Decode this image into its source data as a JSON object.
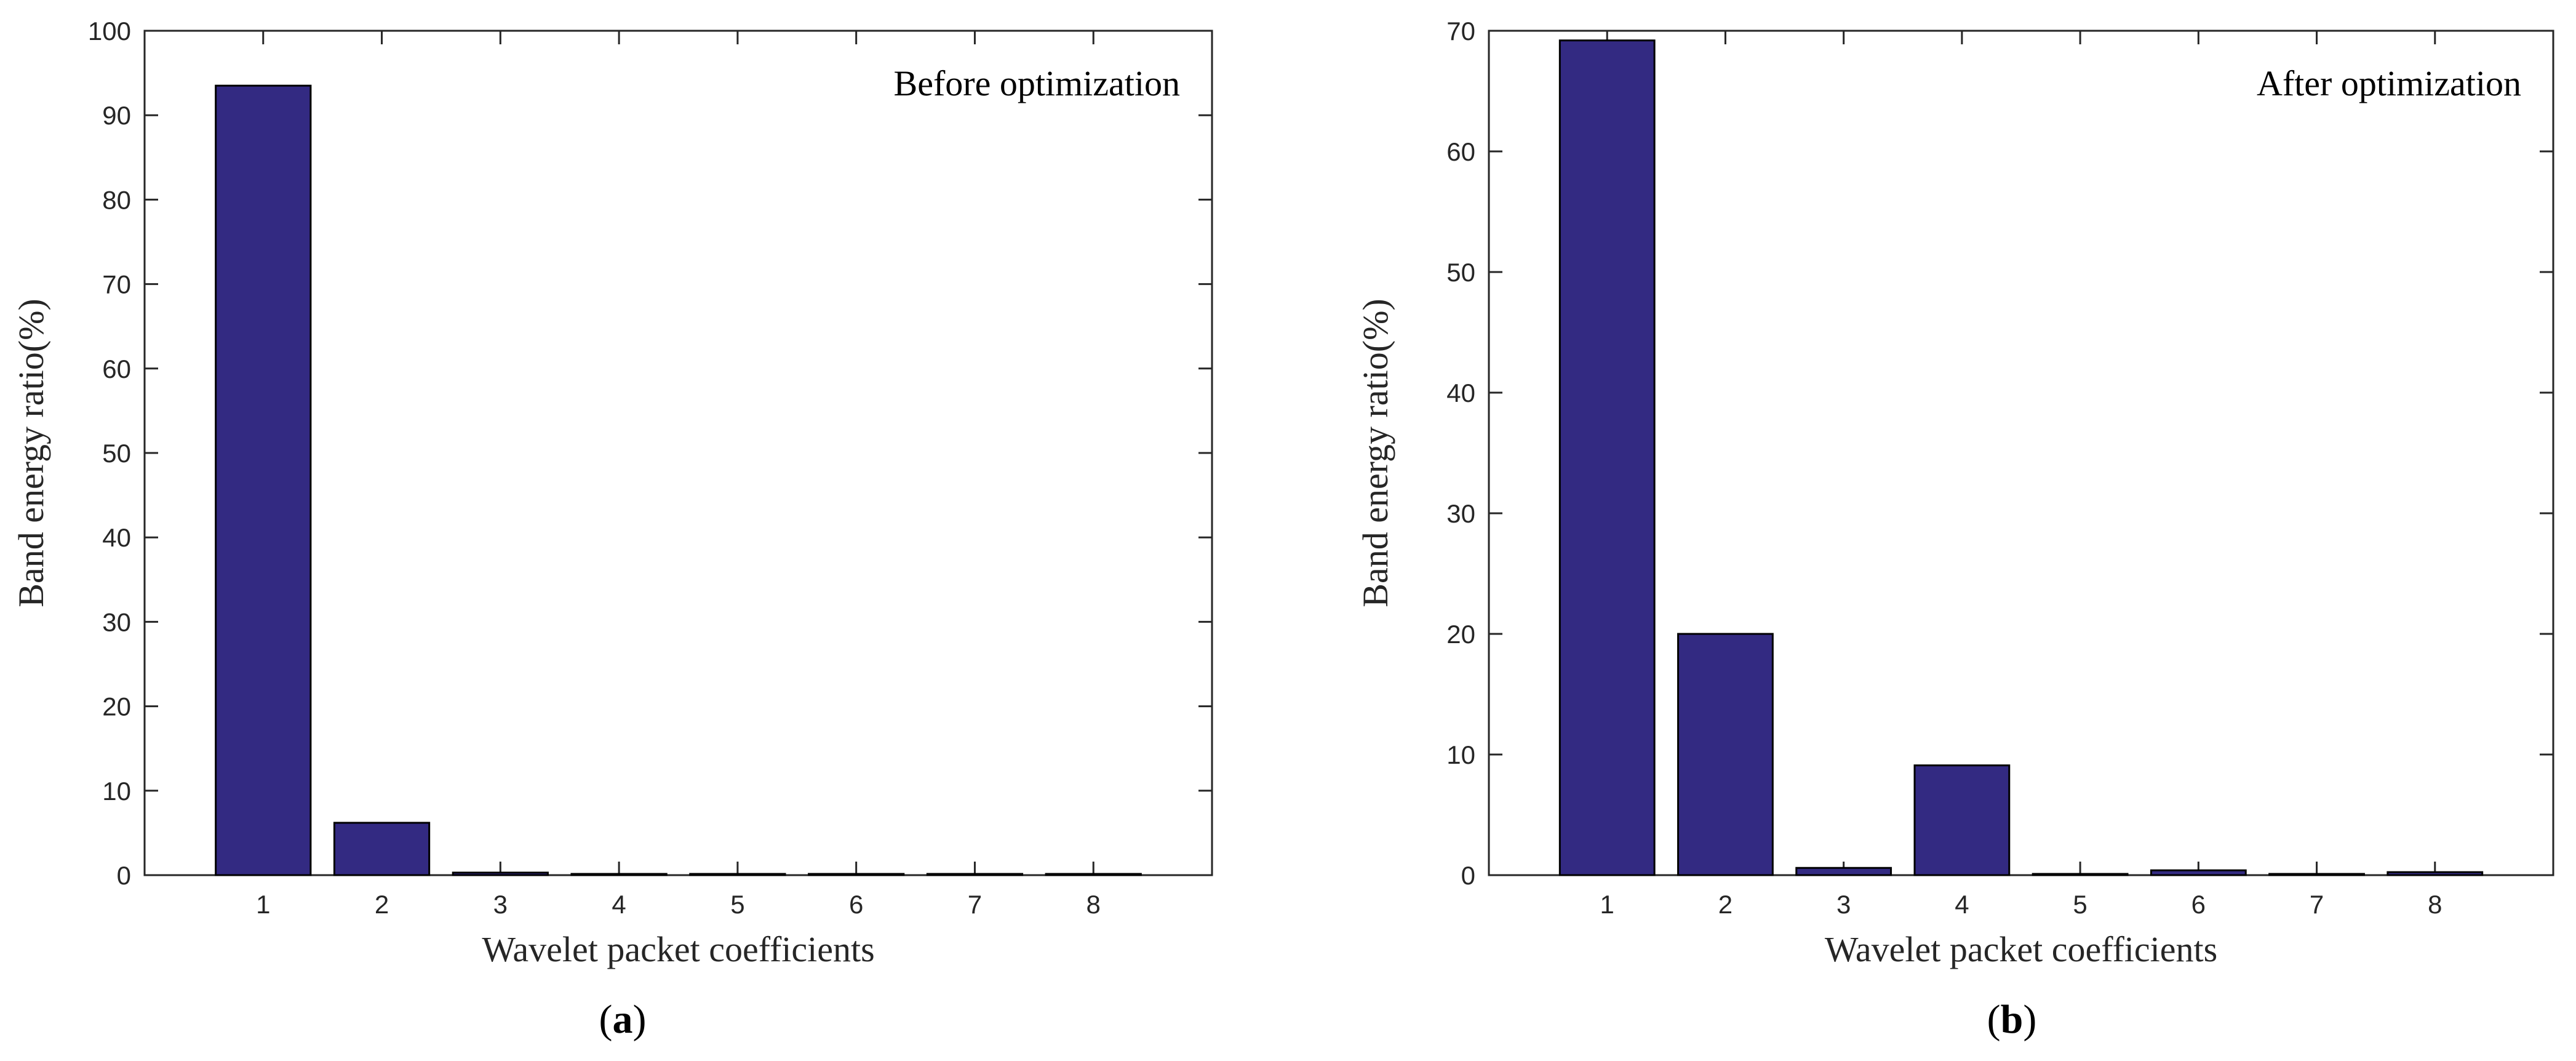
{
  "colors": {
    "bar": "#332a82",
    "bar_edge": "#000000",
    "axis": "#262626",
    "background": "#ffffff"
  },
  "chart_data": [
    {
      "type": "bar",
      "panel_label": "a",
      "annotation": "Before optimization",
      "xlabel": "Wavelet packet coefficients",
      "ylabel": "Band energy ratio(%)",
      "categories": [
        "1",
        "2",
        "3",
        "4",
        "5",
        "6",
        "7",
        "8"
      ],
      "values": [
        93.5,
        6.2,
        0.3,
        0.05,
        0.03,
        0.03,
        0.02,
        0.02
      ],
      "ylim": [
        0,
        100
      ],
      "xlim": [
        0,
        9
      ],
      "yticks": [
        0,
        10,
        20,
        30,
        40,
        50,
        60,
        70,
        80,
        90,
        100
      ],
      "grid": false
    },
    {
      "type": "bar",
      "panel_label": "b",
      "annotation": "After optimization",
      "xlabel": "Wavelet packet coefficients",
      "ylabel": "Band energy ratio(%)",
      "categories": [
        "1",
        "2",
        "3",
        "4",
        "5",
        "6",
        "7",
        "8"
      ],
      "values": [
        69.2,
        20.0,
        0.6,
        9.1,
        0.05,
        0.4,
        0.05,
        0.25
      ],
      "ylim": [
        0,
        70
      ],
      "xlim": [
        0,
        9
      ],
      "yticks": [
        0,
        10,
        20,
        30,
        40,
        50,
        60,
        70
      ],
      "grid": false
    }
  ]
}
